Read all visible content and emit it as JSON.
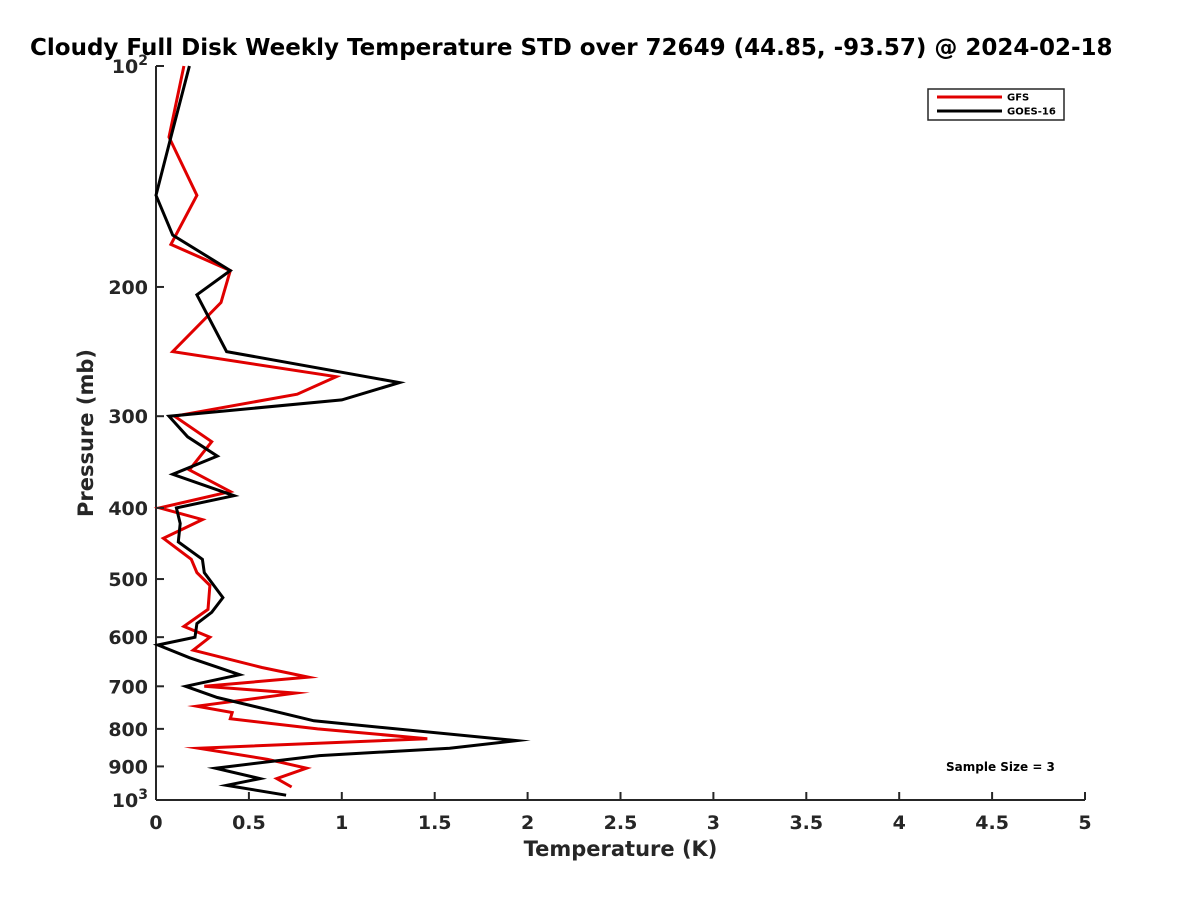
{
  "chart_data": {
    "type": "line",
    "title": "Cloudy Full Disk Weekly Temperature STD over 72649 (44.85, -93.57) @ 2024-02-18",
    "xlabel": "Temperature (K)",
    "ylabel": "Pressure (mb)",
    "xlim": [
      0,
      5
    ],
    "ylim": [
      1000,
      100
    ],
    "y_scale": "log",
    "x_ticks": [
      "0",
      "0.5",
      "1",
      "1.5",
      "2",
      "2.5",
      "3",
      "3.5",
      "4",
      "4.5",
      "5"
    ],
    "y_ticks": [
      {
        "value": 100,
        "base": "10",
        "exp": "2"
      },
      {
        "value": 200,
        "label": "200"
      },
      {
        "value": 300,
        "label": "300"
      },
      {
        "value": 400,
        "label": "400"
      },
      {
        "value": 500,
        "label": "500"
      },
      {
        "value": 600,
        "label": "600"
      },
      {
        "value": 700,
        "label": "700"
      },
      {
        "value": 800,
        "label": "800"
      },
      {
        "value": 900,
        "label": "900"
      },
      {
        "value": 1000,
        "base": "10",
        "exp": "3"
      }
    ],
    "legend_location": "top-right",
    "grid": false,
    "annotation": "Sample Size = 3",
    "series": [
      {
        "name": "GFS",
        "color": "#e00000",
        "points": [
          [
            0.15,
            100
          ],
          [
            0.07,
            125
          ],
          [
            0.22,
            150
          ],
          [
            0.08,
            175
          ],
          [
            0.4,
            190
          ],
          [
            0.35,
            210
          ],
          [
            0.09,
            245
          ],
          [
            0.97,
            265
          ],
          [
            0.76,
            280
          ],
          [
            0.1,
            300
          ],
          [
            0.3,
            325
          ],
          [
            0.18,
            355
          ],
          [
            0.4,
            380
          ],
          [
            0.02,
            400
          ],
          [
            0.25,
            415
          ],
          [
            0.04,
            440
          ],
          [
            0.19,
            470
          ],
          [
            0.22,
            490
          ],
          [
            0.29,
            510
          ],
          [
            0.28,
            550
          ],
          [
            0.15,
            580
          ],
          [
            0.29,
            600
          ],
          [
            0.2,
            625
          ],
          [
            0.57,
            660
          ],
          [
            0.82,
            680
          ],
          [
            0.26,
            700
          ],
          [
            0.75,
            715
          ],
          [
            0.22,
            745
          ],
          [
            0.41,
            760
          ],
          [
            0.4,
            775
          ],
          [
            0.87,
            800
          ],
          [
            1.46,
            825
          ],
          [
            0.23,
            850
          ],
          [
            0.6,
            880
          ],
          [
            0.81,
            905
          ],
          [
            0.65,
            935
          ],
          [
            0.73,
            960
          ]
        ]
      },
      {
        "name": "GOES-16",
        "color": "#000000",
        "points": [
          [
            0.18,
            100
          ],
          [
            0.08,
            125
          ],
          [
            0.0,
            150
          ],
          [
            0.09,
            170
          ],
          [
            0.4,
            190
          ],
          [
            0.22,
            205
          ],
          [
            0.38,
            245
          ],
          [
            1.31,
            270
          ],
          [
            1.0,
            285
          ],
          [
            0.07,
            300
          ],
          [
            0.17,
            320
          ],
          [
            0.33,
            340
          ],
          [
            0.09,
            360
          ],
          [
            0.42,
            385
          ],
          [
            0.11,
            400
          ],
          [
            0.13,
            420
          ],
          [
            0.12,
            445
          ],
          [
            0.25,
            470
          ],
          [
            0.26,
            490
          ],
          [
            0.36,
            530
          ],
          [
            0.3,
            555
          ],
          [
            0.22,
            575
          ],
          [
            0.21,
            600
          ],
          [
            0.01,
            615
          ],
          [
            0.18,
            640
          ],
          [
            0.45,
            675
          ],
          [
            0.16,
            700
          ],
          [
            0.33,
            725
          ],
          [
            0.85,
            780
          ],
          [
            1.94,
            830
          ],
          [
            1.58,
            850
          ],
          [
            0.88,
            870
          ],
          [
            0.32,
            905
          ],
          [
            0.56,
            935
          ],
          [
            0.38,
            955
          ],
          [
            0.7,
            985
          ]
        ]
      }
    ]
  }
}
